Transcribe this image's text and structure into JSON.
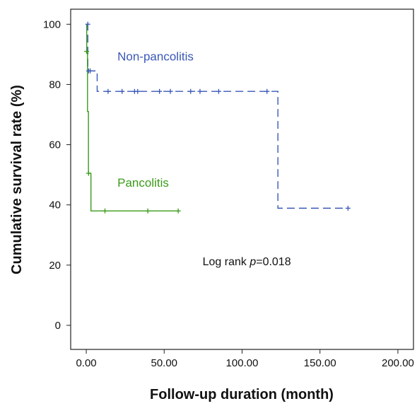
{
  "chart_data": {
    "type": "line",
    "xlabel": "Follow-up duration (month)",
    "ylabel": "Cumulative survival rate (%)",
    "xlim": [
      -10,
      210
    ],
    "ylim": [
      -8,
      105
    ],
    "x_ticks": [
      0,
      50,
      100,
      150,
      200
    ],
    "x_tick_labels": [
      "0.00",
      "50.00",
      "100.00",
      "150.00",
      "200.00"
    ],
    "y_ticks": [
      0,
      20,
      40,
      60,
      80,
      100
    ],
    "y_tick_labels": [
      "0",
      "20",
      "40",
      "60",
      "80",
      "100"
    ],
    "grid": false,
    "annotation": {
      "prefix": "Log rank ",
      "p": "p",
      "suffix": "=0.018",
      "x": 103,
      "y": 20
    },
    "series": [
      {
        "name": "Non-pancolitis",
        "color": "#3a58b8",
        "dashed": true,
        "label_pos": {
          "x": 20,
          "y": 88
        },
        "steps": [
          [
            0,
            100
          ],
          [
            1,
            84.5
          ],
          [
            7,
            77.7
          ],
          [
            123,
            38.9
          ],
          [
            168,
            38.9
          ]
        ],
        "censored": [
          [
            1,
            100
          ],
          [
            1.5,
            84.5
          ],
          [
            2.5,
            84.5
          ],
          [
            14,
            77.7
          ],
          [
            23,
            77.7
          ],
          [
            31,
            77.7
          ],
          [
            33,
            77.7
          ],
          [
            47,
            77.7
          ],
          [
            54,
            77.7
          ],
          [
            67,
            77.7
          ],
          [
            73,
            77.7
          ],
          [
            85,
            77.7
          ],
          [
            116,
            77.7
          ],
          [
            168,
            38.9
          ]
        ]
      },
      {
        "name": "Pancolitis",
        "color": "#3a9a1a",
        "dashed": false,
        "label_pos": {
          "x": 20,
          "y": 46
        },
        "steps": [
          [
            0,
            100
          ],
          [
            0.3,
            91
          ],
          [
            0.8,
            71
          ],
          [
            1.4,
            50.5
          ],
          [
            3,
            38
          ],
          [
            59,
            38
          ]
        ],
        "censored": [
          [
            0.2,
            91
          ],
          [
            1.5,
            50.5
          ],
          [
            12,
            38
          ],
          [
            39.5,
            38
          ],
          [
            59,
            38
          ]
        ]
      }
    ]
  }
}
